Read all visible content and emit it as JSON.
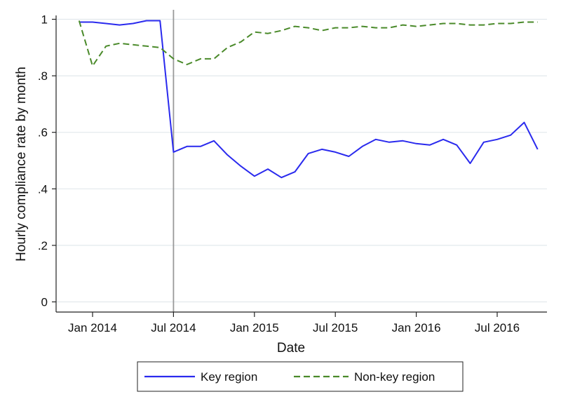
{
  "chart_data": {
    "type": "line",
    "xlabel": "Date",
    "ylabel": "Hourly compliance rate by month",
    "ylim": [
      0,
      1
    ],
    "xlim": [
      "2013-11-15",
      "2016-11-15"
    ],
    "y_ticks": [
      {
        "value": 0,
        "label": "0"
      },
      {
        "value": 0.2,
        "label": ".2"
      },
      {
        "value": 0.4,
        "label": ".4"
      },
      {
        "value": 0.6,
        "label": ".6"
      },
      {
        "value": 0.8,
        "label": ".8"
      },
      {
        "value": 1,
        "label": "1"
      }
    ],
    "x_ticks": [
      {
        "value": "2014-01",
        "label": "Jan 2014"
      },
      {
        "value": "2014-07",
        "label": "Jul 2014"
      },
      {
        "value": "2015-01",
        "label": "Jan 2015"
      },
      {
        "value": "2015-07",
        "label": "Jul 2015"
      },
      {
        "value": "2016-01",
        "label": "Jan 2016"
      },
      {
        "value": "2016-07",
        "label": "Jul 2016"
      }
    ],
    "vertical_line_at": "2014-07",
    "grid": "horizontal",
    "legend": "bottom",
    "x": [
      "2013-12",
      "2014-01",
      "2014-02",
      "2014-03",
      "2014-04",
      "2014-05",
      "2014-06",
      "2014-07",
      "2014-08",
      "2014-09",
      "2014-10",
      "2014-11",
      "2014-12",
      "2015-01",
      "2015-02",
      "2015-03",
      "2015-04",
      "2015-05",
      "2015-06",
      "2015-07",
      "2015-08",
      "2015-09",
      "2015-10",
      "2015-11",
      "2015-12",
      "2016-01",
      "2016-02",
      "2016-03",
      "2016-04",
      "2016-05",
      "2016-06",
      "2016-07",
      "2016-08",
      "2016-09",
      "2016-10"
    ],
    "series": [
      {
        "name": "Key region",
        "color": "#2a2aee",
        "style": "solid",
        "values": [
          0.99,
          0.99,
          0.985,
          0.98,
          0.985,
          0.995,
          0.995,
          0.53,
          0.55,
          0.55,
          0.57,
          0.52,
          0.48,
          0.445,
          0.47,
          0.44,
          0.46,
          0.525,
          0.54,
          0.53,
          0.515,
          0.55,
          0.575,
          0.565,
          0.57,
          0.56,
          0.555,
          0.575,
          0.555,
          0.49,
          0.565,
          0.575,
          0.59,
          0.635,
          0.54
        ]
      },
      {
        "name": "Non-key region",
        "color": "#4a8a2a",
        "style": "dashed",
        "values": [
          0.995,
          0.835,
          0.905,
          0.915,
          0.91,
          0.905,
          0.9,
          0.86,
          0.84,
          0.86,
          0.86,
          0.9,
          0.92,
          0.955,
          0.95,
          0.96,
          0.975,
          0.97,
          0.96,
          0.97,
          0.97,
          0.975,
          0.97,
          0.97,
          0.98,
          0.975,
          0.98,
          0.985,
          0.985,
          0.98,
          0.98,
          0.985,
          0.985,
          0.99,
          0.99
        ]
      }
    ]
  }
}
